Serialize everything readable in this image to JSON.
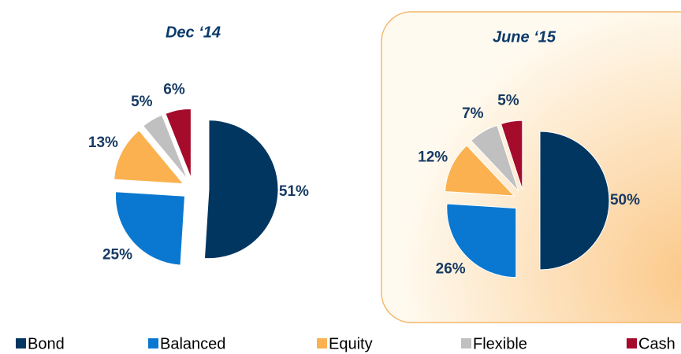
{
  "chart_data": [
    {
      "type": "pie",
      "title": "Dec ‘14",
      "categories": [
        "Bond",
        "Balanced",
        "Equity",
        "Flexible",
        "Cash"
      ],
      "values": [
        51,
        25,
        13,
        5,
        6
      ],
      "value_labels": [
        "51%",
        "25%",
        "13%",
        "5%",
        "6%"
      ],
      "colors": [
        "#003660",
        "#0a78d0",
        "#fbb150",
        "#c0c0c0",
        "#a50b2b"
      ]
    },
    {
      "type": "pie",
      "title": "June ‘15",
      "categories": [
        "Bond",
        "Balanced",
        "Equity",
        "Flexible",
        "Cash"
      ],
      "values": [
        50,
        26,
        12,
        7,
        5
      ],
      "value_labels": [
        "50%",
        "26%",
        "12%",
        "7%",
        "5%"
      ],
      "colors": [
        "#003660",
        "#0a78d0",
        "#fbb150",
        "#c0c0c0",
        "#a50b2b"
      ]
    }
  ]
}
